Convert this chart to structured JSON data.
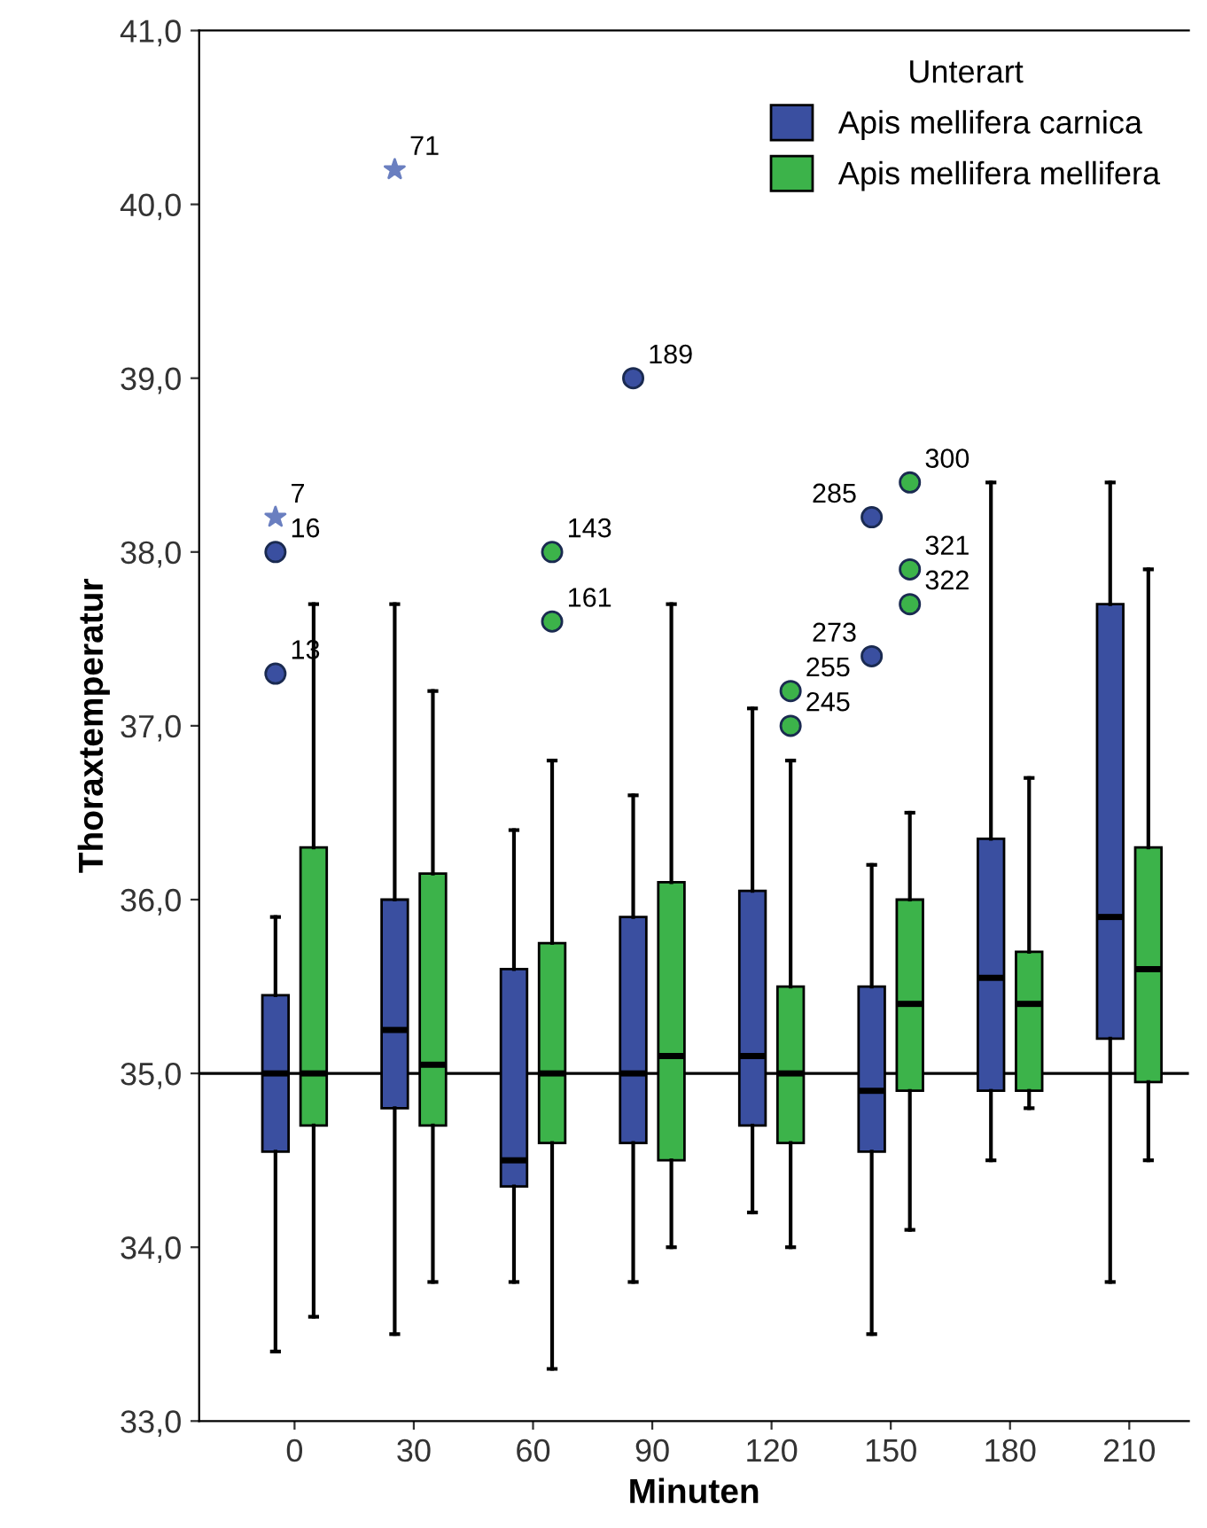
{
  "chart_data": {
    "type": "box",
    "xlabel": "Minuten",
    "ylabel": "Thoraxtemperatur",
    "legend_title": "Unterart",
    "legend": "top right",
    "grid": false,
    "categories": [
      "0",
      "30",
      "60",
      "90",
      "120",
      "150",
      "180",
      "210"
    ],
    "ylim": [
      33,
      41
    ],
    "yticks": [
      {
        "value": 33,
        "label": "33,0"
      },
      {
        "value": 34,
        "label": "34,0"
      },
      {
        "value": 35,
        "label": "35,0"
      },
      {
        "value": 36,
        "label": "36,0"
      },
      {
        "value": 37,
        "label": "37,0"
      },
      {
        "value": 38,
        "label": "38,0"
      },
      {
        "value": 39,
        "label": "39,0"
      },
      {
        "value": 40,
        "label": "40,0"
      },
      {
        "value": 41,
        "label": "41,0"
      }
    ],
    "ref_lines": [
      {
        "axis": "y",
        "value": 35,
        "color": "#000000"
      }
    ],
    "series": [
      {
        "name": "Apis mellifera carnica",
        "color": "#3a4fa0",
        "boxes": [
          {
            "low": 33.4,
            "q1": 34.55,
            "median": 35.0,
            "q3": 35.45,
            "high": 35.9,
            "outliers": [
              38.0,
              37.3
            ]
          },
          {
            "low": 33.5,
            "q1": 34.8,
            "median": 35.25,
            "q3": 36.0,
            "high": 37.7
          },
          {
            "low": 33.8,
            "q1": 34.35,
            "median": 34.5,
            "q3": 35.6,
            "high": 36.4
          },
          {
            "low": 33.8,
            "q1": 34.6,
            "median": 35.0,
            "q3": 35.9,
            "high": 36.6,
            "outliers": [
              39.0
            ]
          },
          {
            "low": 34.2,
            "q1": 34.7,
            "median": 35.1,
            "q3": 36.05,
            "high": 37.1
          },
          {
            "low": 33.5,
            "q1": 34.55,
            "median": 34.9,
            "q3": 35.5,
            "high": 36.2,
            "outliers": [
              38.2,
              37.4
            ]
          },
          {
            "low": 34.5,
            "q1": 34.9,
            "median": 35.55,
            "q3": 36.35,
            "high": 38.4
          },
          {
            "low": 33.8,
            "q1": 35.2,
            "median": 35.9,
            "q3": 37.7,
            "high": 38.4
          }
        ]
      },
      {
        "name": "Apis mellifera mellifera",
        "color": "#3cb34a",
        "boxes": [
          {
            "low": 33.6,
            "q1": 34.7,
            "median": 35.0,
            "q3": 36.3,
            "high": 37.7
          },
          {
            "low": 33.8,
            "q1": 34.7,
            "median": 35.05,
            "q3": 36.15,
            "high": 37.2
          },
          {
            "low": 33.3,
            "q1": 34.6,
            "median": 35.0,
            "q3": 35.75,
            "high": 36.8,
            "outliers": [
              38.0,
              37.6
            ]
          },
          {
            "low": 34.0,
            "q1": 34.5,
            "median": 35.1,
            "q3": 36.1,
            "high": 37.7
          },
          {
            "low": 34.0,
            "q1": 34.6,
            "median": 35.0,
            "q3": 35.5,
            "high": 36.8,
            "outliers": [
              37.2,
              37.0
            ]
          },
          {
            "low": 34.1,
            "q1": 34.9,
            "median": 35.4,
            "q3": 36.0,
            "high": 36.5,
            "outliers": [
              38.4,
              37.9,
              37.7
            ]
          },
          {
            "low": 34.8,
            "q1": 34.9,
            "median": 35.4,
            "q3": 35.7,
            "high": 36.7
          },
          {
            "low": 34.5,
            "q1": 34.95,
            "median": 35.6,
            "q3": 36.3,
            "high": 37.9
          }
        ]
      },
      {
        "type": "scatter",
        "marker": "star",
        "color": "#6a7fc0",
        "x": [
          "0",
          "30"
        ],
        "values": [
          38.2,
          40.2
        ]
      }
    ],
    "annotations": [
      "7",
      "16",
      "13",
      "71",
      "143",
      "161",
      "189",
      "255",
      "245",
      "285",
      "273",
      "300",
      "321",
      "322"
    ]
  }
}
